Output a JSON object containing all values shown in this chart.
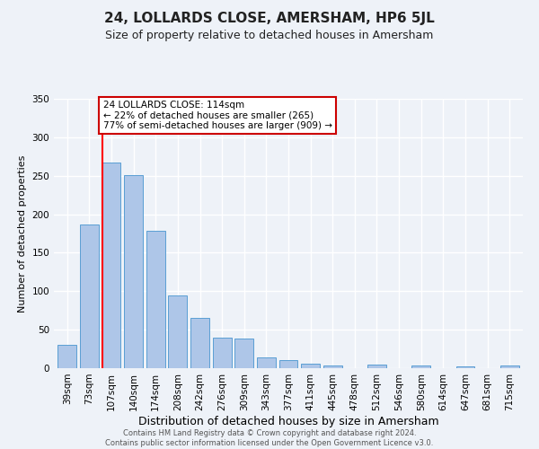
{
  "title": "24, LOLLARDS CLOSE, AMERSHAM, HP6 5JL",
  "subtitle": "Size of property relative to detached houses in Amersham",
  "xlabel": "Distribution of detached houses by size in Amersham",
  "ylabel": "Number of detached properties",
  "bar_labels": [
    "39sqm",
    "73sqm",
    "107sqm",
    "140sqm",
    "174sqm",
    "208sqm",
    "242sqm",
    "276sqm",
    "309sqm",
    "343sqm",
    "377sqm",
    "411sqm",
    "445sqm",
    "478sqm",
    "512sqm",
    "546sqm",
    "580sqm",
    "614sqm",
    "647sqm",
    "681sqm",
    "715sqm"
  ],
  "bar_heights": [
    30,
    187,
    267,
    251,
    178,
    95,
    65,
    40,
    39,
    14,
    10,
    6,
    4,
    0,
    5,
    0,
    3,
    0,
    2,
    0,
    3
  ],
  "bar_color": "#aec6e8",
  "bar_edge_color": "#5a9fd4",
  "red_line_x": 2,
  "annotation_title": "24 LOLLARDS CLOSE: 114sqm",
  "annotation_line1": "← 22% of detached houses are smaller (265)",
  "annotation_line2": "77% of semi-detached houses are larger (909) →",
  "ylim": [
    0,
    350
  ],
  "yticks": [
    0,
    50,
    100,
    150,
    200,
    250,
    300,
    350
  ],
  "footer_line1": "Contains HM Land Registry data © Crown copyright and database right 2024.",
  "footer_line2": "Contains public sector information licensed under the Open Government Licence v3.0.",
  "bg_color": "#eef2f8",
  "grid_color": "#ffffff",
  "annotation_box_color": "#ffffff",
  "annotation_box_edge": "#cc0000",
  "title_fontsize": 11,
  "subtitle_fontsize": 9,
  "xlabel_fontsize": 9,
  "ylabel_fontsize": 8,
  "tick_fontsize": 7.5,
  "footer_fontsize": 6
}
